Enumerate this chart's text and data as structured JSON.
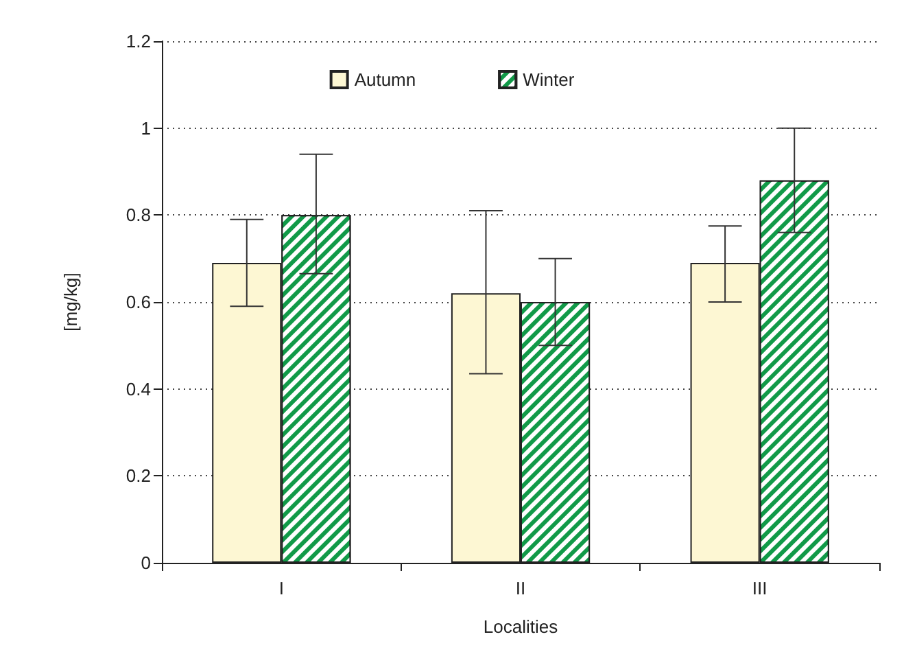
{
  "chart_data": {
    "type": "bar",
    "xlabel": "Localities",
    "ylabel": "[mg/kg]",
    "categories": [
      "I",
      "II",
      "III"
    ],
    "series": [
      {
        "name": "Autumn",
        "color": "#fdf7d3",
        "values": [
          0.69,
          0.62,
          0.69
        ],
        "errors": [
          [
            0.59,
            0.79
          ],
          [
            0.435,
            0.81
          ],
          [
            0.6,
            0.775
          ]
        ]
      },
      {
        "name": "Winter",
        "color": "#119a48",
        "values": [
          0.8,
          0.6,
          0.88
        ],
        "errors": [
          [
            0.665,
            0.94
          ],
          [
            0.5,
            0.7
          ],
          [
            0.76,
            1.0
          ]
        ]
      }
    ],
    "ylim": [
      0,
      1.2
    ],
    "yticks": [
      0,
      0.2,
      0.4,
      0.6,
      0.8,
      1,
      1.2
    ],
    "grid": "y",
    "legend": "top"
  }
}
